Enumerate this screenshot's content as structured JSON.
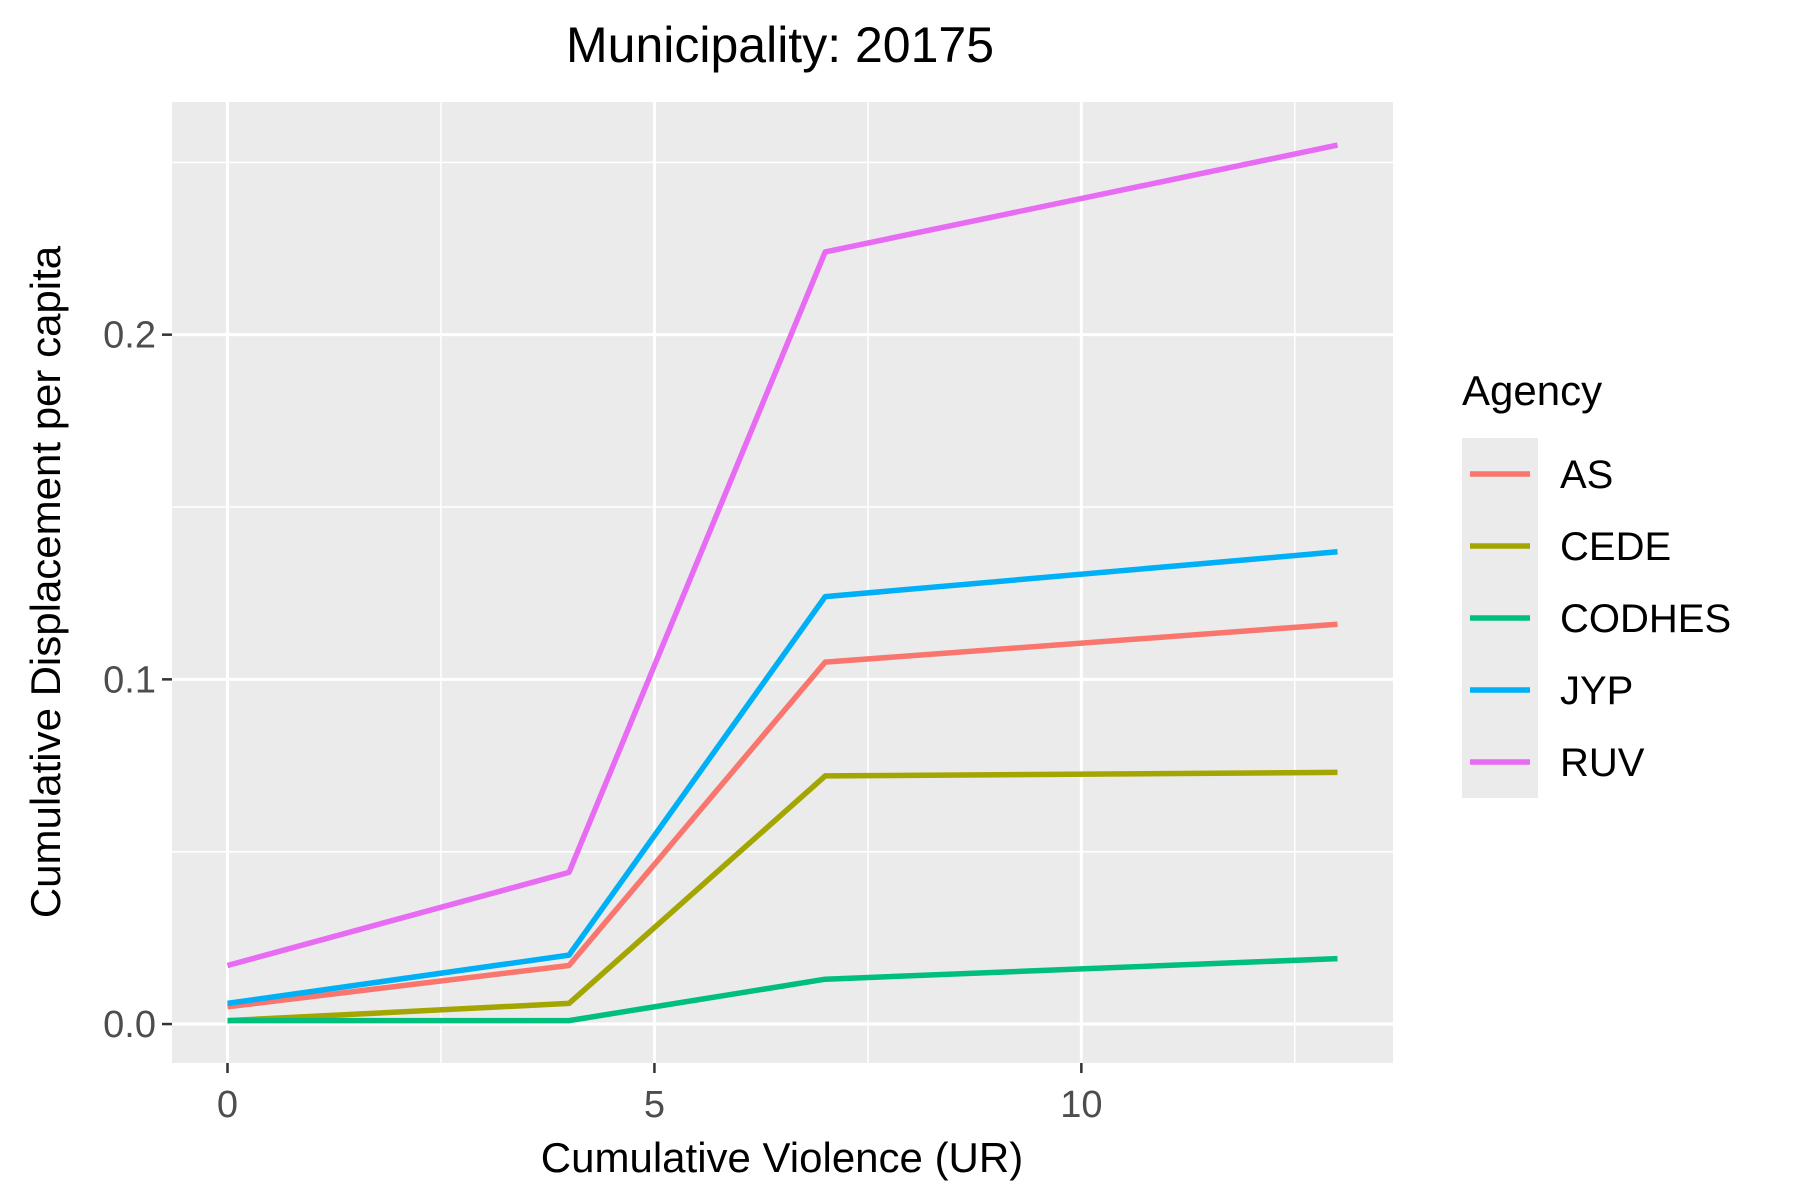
{
  "chart_data": {
    "type": "line",
    "title": "Municipality: 20175",
    "xlabel": "Cumulative Violence (UR)",
    "ylabel": "Cumulative Displacement per capita",
    "xlim": [
      -0.65,
      13.65
    ],
    "ylim": [
      -0.0113,
      0.2675
    ],
    "x_ticks": [
      0,
      5,
      10
    ],
    "x_tick_labels": [
      "0",
      "5",
      "10"
    ],
    "y_ticks": [
      0.0,
      0.1,
      0.2
    ],
    "y_tick_labels": [
      "0.0",
      "0.1",
      "0.2"
    ],
    "grid": true,
    "legend": {
      "title": "Agency",
      "position": "right"
    },
    "x": [
      0,
      4,
      7,
      13
    ],
    "series": [
      {
        "name": "AS",
        "color": "#F8766D",
        "values": [
          0.005,
          0.017,
          0.105,
          0.116
        ]
      },
      {
        "name": "CEDE",
        "color": "#A3A500",
        "values": [
          0.001,
          0.006,
          0.072,
          0.073
        ]
      },
      {
        "name": "CODHES",
        "color": "#00BF7D",
        "values": [
          0.001,
          0.001,
          0.013,
          0.019
        ]
      },
      {
        "name": "JYP",
        "color": "#00B0F6",
        "values": [
          0.006,
          0.02,
          0.124,
          0.137
        ]
      },
      {
        "name": "RUV",
        "color": "#E76BF3",
        "values": [
          0.017,
          0.044,
          0.224,
          0.255
        ]
      }
    ]
  }
}
